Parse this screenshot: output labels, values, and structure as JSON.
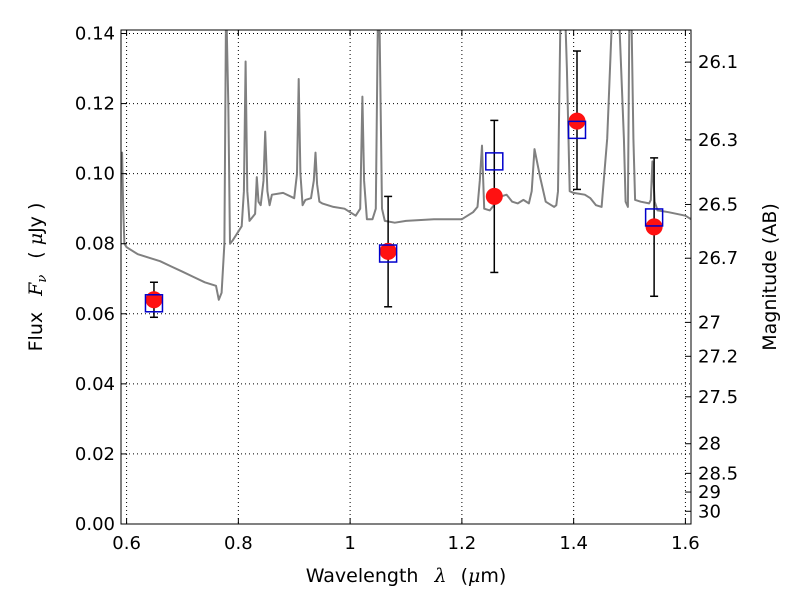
{
  "chart_data": {
    "type": "scatter",
    "xlabel": {
      "prefix": "Wavelength",
      "symbol": "λ",
      "unit_open": "(",
      "unit_mu": "μ",
      "unit_rest": "m)"
    },
    "ylabel": {
      "prefix": "Flux",
      "symbol_main": "F",
      "symbol_sub": "ν",
      "unit_open": "(",
      "unit_mu": "μ",
      "unit_rest": "Jy )"
    },
    "y2label": "Magnitude (AB)",
    "xlim": [
      0.59,
      1.61
    ],
    "ylim": [
      0.0,
      0.141
    ],
    "grid": true,
    "x_ticks": [
      0.6,
      0.8,
      1.0,
      1.2,
      1.4,
      1.6
    ],
    "x_tick_labels": [
      "0.6",
      "0.8",
      "1",
      "1.2",
      "1.4",
      "1.6"
    ],
    "y_ticks": [
      0.0,
      0.02,
      0.04,
      0.06,
      0.08,
      0.1,
      0.12,
      0.14
    ],
    "y_tick_labels": [
      "0.00",
      "0.02",
      "0.04",
      "0.06",
      "0.08",
      "0.10",
      "0.12",
      "0.14"
    ],
    "mag_ticks": [
      26.1,
      26.3,
      26.5,
      26.7,
      27,
      27.2,
      27.5,
      28,
      28.5,
      29,
      30
    ],
    "mag_tick_labels": [
      "26.1",
      "26.3",
      "26.5",
      "26.7",
      "27",
      "27.2",
      "27.5",
      "28",
      "28.5",
      "29",
      "30"
    ],
    "colors": {
      "model": "#808080",
      "observed": "#ff1111",
      "model_photometry": "#0000cc",
      "errorbar": "#000000",
      "grid": "#000000"
    },
    "observed": {
      "x": [
        0.649,
        1.068,
        1.258,
        1.406,
        1.544
      ],
      "y": [
        0.064,
        0.0778,
        0.0935,
        0.115,
        0.0848
      ],
      "yerr_low": [
        0.059,
        0.062,
        0.0718,
        0.0955,
        0.065
      ],
      "yerr_high": [
        0.069,
        0.0935,
        0.1152,
        0.135,
        0.1045
      ]
    },
    "model_photometry": {
      "x": [
        0.649,
        1.068,
        1.258,
        1.406,
        1.544
      ],
      "y": [
        0.063,
        0.0772,
        0.1035,
        0.1125,
        0.0875
      ]
    },
    "model_spectrum": {
      "x": [
        0.59,
        0.592,
        0.594,
        0.596,
        0.6,
        0.62,
        0.64,
        0.66,
        0.68,
        0.7,
        0.72,
        0.74,
        0.76,
        0.765,
        0.77,
        0.775,
        0.778,
        0.782,
        0.785,
        0.79,
        0.8,
        0.806,
        0.81,
        0.813,
        0.816,
        0.82,
        0.83,
        0.833,
        0.836,
        0.84,
        0.845,
        0.848,
        0.852,
        0.856,
        0.86,
        0.88,
        0.9,
        0.905,
        0.908,
        0.911,
        0.915,
        0.92,
        0.93,
        0.935,
        0.938,
        0.941,
        0.945,
        0.95,
        0.97,
        0.99,
        1.0,
        1.01,
        1.018,
        1.022,
        1.025,
        1.03,
        1.04,
        1.046,
        1.05,
        1.052,
        1.057,
        1.062,
        1.08,
        1.1,
        1.15,
        1.2,
        1.22,
        1.228,
        1.232,
        1.236,
        1.24,
        1.25,
        1.27,
        1.28,
        1.29,
        1.3,
        1.31,
        1.32,
        1.325,
        1.33,
        1.34,
        1.35,
        1.36,
        1.365,
        1.369,
        1.372,
        1.376,
        1.38,
        1.384,
        1.388,
        1.393,
        1.4,
        1.42,
        1.43,
        1.44,
        1.45,
        1.46,
        1.47,
        1.48,
        1.49,
        1.493,
        1.497,
        1.5,
        1.503,
        1.507,
        1.51,
        1.52,
        1.535,
        1.538,
        1.541,
        1.545,
        1.55,
        1.57,
        1.6,
        1.61
      ],
      "y": [
        0.1,
        0.106,
        0.09,
        0.08,
        0.079,
        0.077,
        0.076,
        0.075,
        0.0735,
        0.072,
        0.0705,
        0.069,
        0.068,
        0.064,
        0.066,
        0.08,
        0.15,
        0.12,
        0.08,
        0.081,
        0.0835,
        0.085,
        0.095,
        0.132,
        0.095,
        0.0865,
        0.0885,
        0.099,
        0.092,
        0.091,
        0.098,
        0.112,
        0.095,
        0.091,
        0.094,
        0.0945,
        0.093,
        0.1,
        0.127,
        0.1,
        0.091,
        0.0925,
        0.093,
        0.098,
        0.106,
        0.097,
        0.092,
        0.0915,
        0.0905,
        0.09,
        0.089,
        0.088,
        0.09,
        0.122,
        0.098,
        0.087,
        0.087,
        0.09,
        0.15,
        0.15,
        0.09,
        0.0865,
        0.086,
        0.0865,
        0.087,
        0.087,
        0.089,
        0.0905,
        0.098,
        0.108,
        0.09,
        0.0895,
        0.0935,
        0.094,
        0.092,
        0.0915,
        0.0925,
        0.0915,
        0.095,
        0.107,
        0.099,
        0.092,
        0.091,
        0.0905,
        0.091,
        0.095,
        0.14,
        0.15,
        0.15,
        0.13,
        0.095,
        0.0945,
        0.094,
        0.093,
        0.091,
        0.0905,
        0.11,
        0.15,
        0.15,
        0.11,
        0.092,
        0.0905,
        0.15,
        0.15,
        0.11,
        0.0925,
        0.092,
        0.0915,
        0.0925,
        0.1035,
        0.092,
        0.0895,
        0.089,
        0.088,
        0.087
      ]
    }
  }
}
